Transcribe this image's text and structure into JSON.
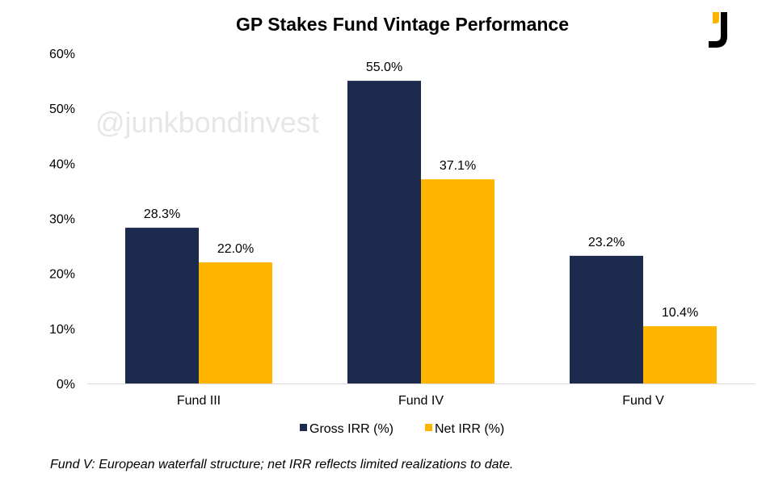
{
  "chart_data": {
    "type": "bar",
    "title": "GP Stakes Fund Vintage Performance",
    "categories": [
      "Fund III",
      "Fund IV",
      "Fund V"
    ],
    "series": [
      {
        "name": "Gross IRR (%)",
        "color": "#1c2a4d",
        "values": [
          28.3,
          55.0,
          23.2
        ],
        "labels": [
          "28.3%",
          "55.0%",
          "23.2%"
        ]
      },
      {
        "name": "Net IRR (%)",
        "color": "#ffb400",
        "values": [
          22.0,
          37.1,
          10.4
        ],
        "labels": [
          "22.0%",
          "37.1%",
          "10.4%"
        ]
      }
    ],
    "ylim": [
      0,
      60
    ],
    "yticks": [
      0,
      10,
      20,
      30,
      40,
      50,
      60
    ],
    "ytick_labels": [
      "0%",
      "10%",
      "20%",
      "30%",
      "40%",
      "50%",
      "60%"
    ],
    "xlabel": "",
    "ylabel": "",
    "grid": false,
    "legend_position": "bottom-center"
  },
  "watermark": "@junkbondinvest",
  "logo": {
    "text": "J",
    "accent": "#ffb400"
  },
  "footnote": "Fund V:  European waterfall structure; net IRR reflects limited realizations to date."
}
